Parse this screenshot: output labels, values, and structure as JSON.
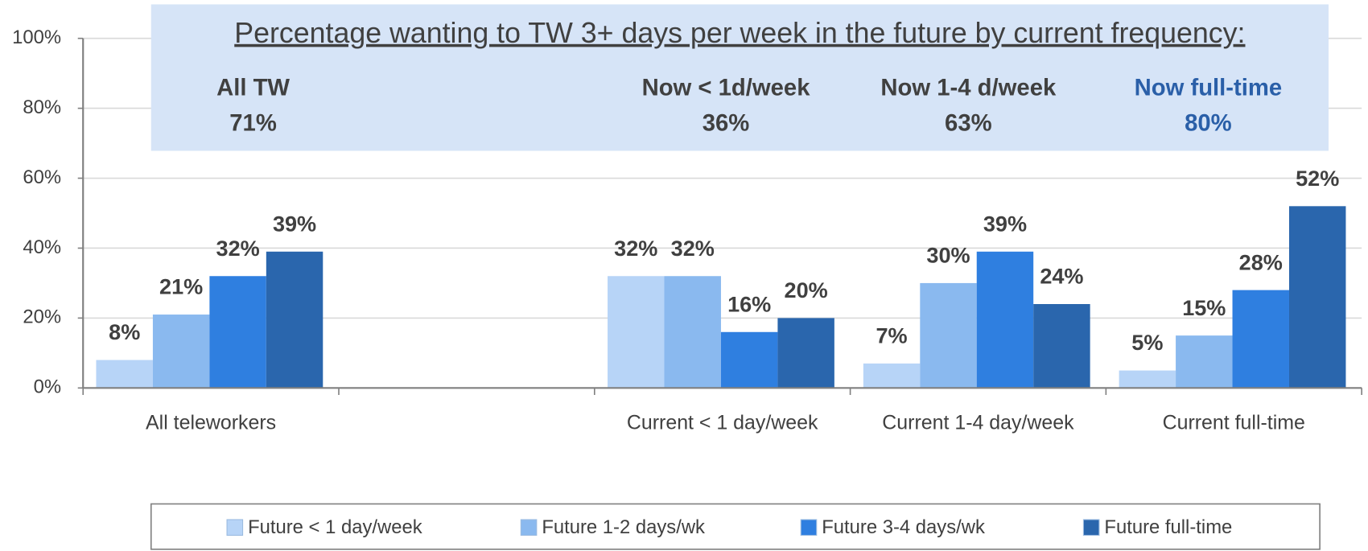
{
  "chart_data": {
    "type": "bar",
    "title": "Percentage wanting to TW 3+ days per week in the future by current frequency:",
    "annotations": [
      {
        "label": "All TW",
        "value": "71%",
        "color": "#404040"
      },
      {
        "label": "Now < 1d/week",
        "value": "36%",
        "color": "#404040"
      },
      {
        "label": "Now 1-4 d/week",
        "value": "63%",
        "color": "#404040"
      },
      {
        "label": "Now full-time",
        "value": "80%",
        "color": "#2a5fa8"
      }
    ],
    "categories": [
      "All teleworkers",
      null,
      "Current < 1 day/week",
      "Current 1-4 day/week",
      "Current full-time"
    ],
    "series": [
      {
        "name": "Future < 1 day/week",
        "color": "#b7d4f7",
        "values": [
          8,
          null,
          32,
          7,
          5
        ],
        "value_labels": [
          "8%",
          null,
          "32%",
          "7%",
          "5%"
        ]
      },
      {
        "name": "Future 1-2 days/wk",
        "color": "#8ab9ef",
        "values": [
          21,
          null,
          32,
          30,
          15
        ],
        "value_labels": [
          "21%",
          null,
          "32%",
          "30%",
          "15%"
        ]
      },
      {
        "name": "Future 3-4 days/wk",
        "color": "#2f7fe0",
        "values": [
          32,
          null,
          16,
          39,
          28
        ],
        "value_labels": [
          "32%",
          null,
          "16%",
          "39%",
          "28%"
        ]
      },
      {
        "name": "Future full-time",
        "color": "#2a66ad",
        "values": [
          39,
          null,
          20,
          24,
          52
        ],
        "value_labels": [
          "39%",
          null,
          "20%",
          "24%",
          "52%"
        ]
      }
    ],
    "ylim": [
      0,
      100
    ],
    "yticks": [
      {
        "value": 0,
        "label": "0%"
      },
      {
        "value": 20,
        "label": "20%"
      },
      {
        "value": 40,
        "label": "40%"
      },
      {
        "value": 60,
        "label": "60%"
      },
      {
        "value": 80,
        "label": "80%"
      },
      {
        "value": 100,
        "label": "100%"
      }
    ],
    "grid": true,
    "legend": "bottom"
  }
}
